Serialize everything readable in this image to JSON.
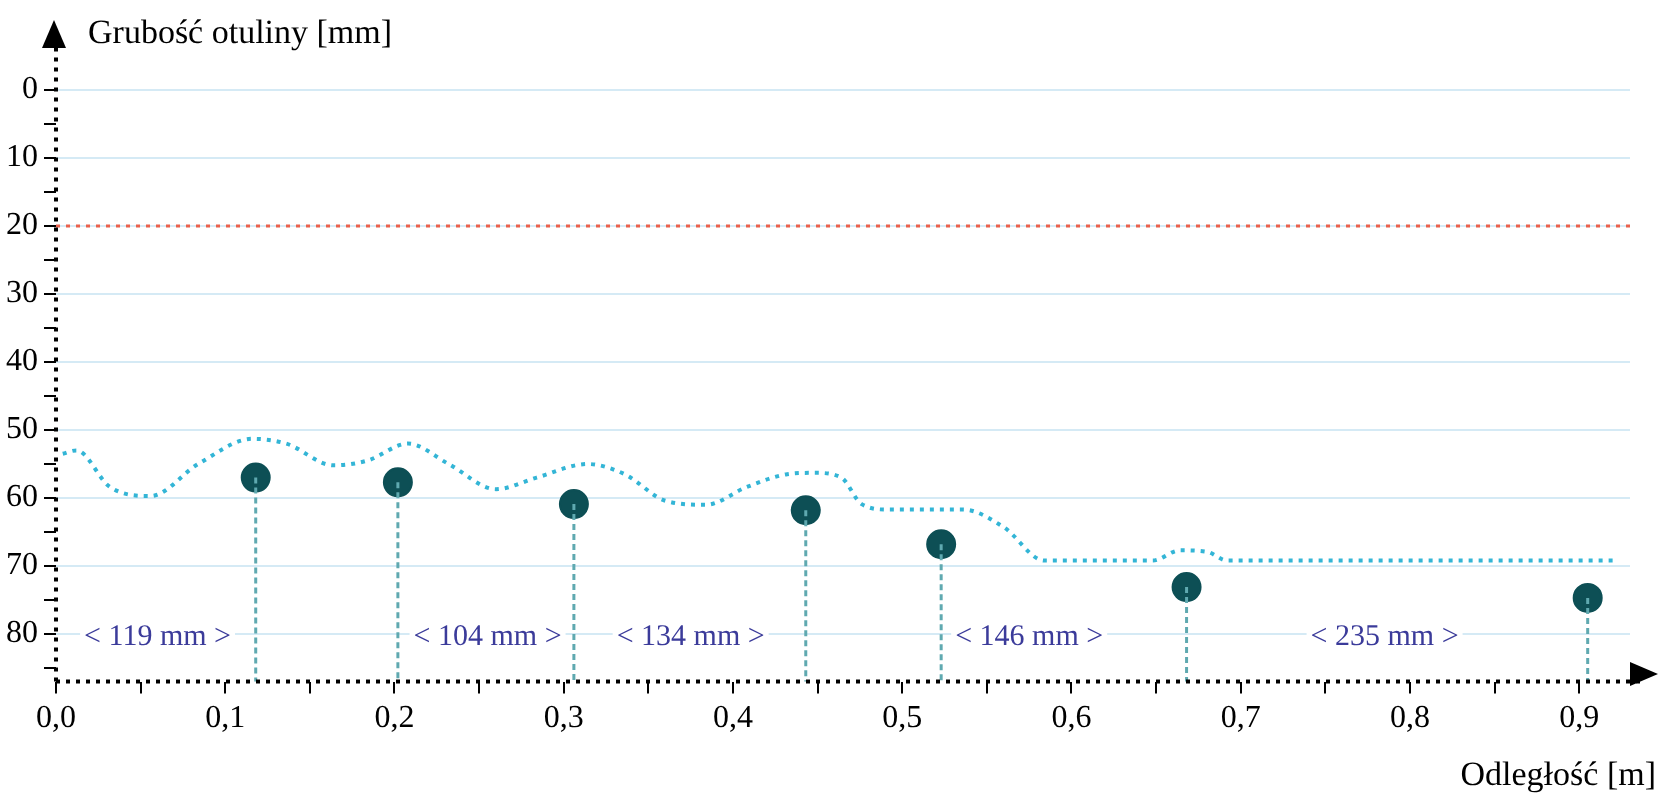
{
  "chart_data": {
    "type": "line",
    "xlabel": "Odległość [m]",
    "ylabel": "Grubość otuliny [mm]",
    "xlim": [
      0,
      0.93
    ],
    "ylim": [
      87,
      0
    ],
    "xticks": [
      {
        "value": 0,
        "label": "0,0"
      },
      {
        "value": 0.05,
        "label": null
      },
      {
        "value": 0.1,
        "label": "0,1"
      },
      {
        "value": 0.15,
        "label": null
      },
      {
        "value": 0.2,
        "label": "0,2"
      },
      {
        "value": 0.25,
        "label": null
      },
      {
        "value": 0.3,
        "label": "0,3"
      },
      {
        "value": 0.35,
        "label": null
      },
      {
        "value": 0.4,
        "label": "0,4"
      },
      {
        "value": 0.45,
        "label": null
      },
      {
        "value": 0.5,
        "label": "0,5"
      },
      {
        "value": 0.55,
        "label": null
      },
      {
        "value": 0.6,
        "label": "0,6"
      },
      {
        "value": 0.65,
        "label": null
      },
      {
        "value": 0.7,
        "label": "0,7"
      },
      {
        "value": 0.75,
        "label": null
      },
      {
        "value": 0.8,
        "label": "0,8"
      },
      {
        "value": 0.85,
        "label": null
      },
      {
        "value": 0.9,
        "label": "0,9"
      }
    ],
    "yticks": [
      0,
      {
        "value": 5,
        "label": null
      },
      10,
      {
        "value": 15,
        "label": null
      },
      20,
      {
        "value": 25,
        "label": null
      },
      30,
      {
        "value": 35,
        "label": null
      },
      40,
      {
        "value": 45,
        "label": null
      },
      50,
      {
        "value": 55,
        "label": null
      },
      60,
      {
        "value": 65,
        "label": null
      },
      70,
      {
        "value": 75,
        "label": null
      },
      80,
      {
        "value": 85,
        "label": null
      }
    ],
    "grid": "y",
    "series": [
      {
        "type": "line",
        "color": "#33b5d6",
        "line_style": "dotted",
        "marker": "none",
        "x": [
          0.004,
          0.012,
          0.032,
          0.056,
          0.084,
          0.116,
          0.136,
          0.164,
          0.184,
          0.208,
          0.232,
          0.26,
          0.284,
          0.314,
          0.336,
          0.36,
          0.384,
          0.408,
          0.432,
          0.448,
          0.464,
          0.476,
          0.492,
          0.536,
          0.56,
          0.584,
          0.648,
          0.664,
          0.68,
          0.692,
          0.92
        ],
        "values": [
          53.5,
          53,
          58.4,
          59.7,
          55,
          51.3,
          52,
          55.2,
          54.5,
          52,
          55,
          58.7,
          57,
          55,
          56.5,
          60.4,
          61,
          58.4,
          56.5,
          56.3,
          57,
          60.9,
          61.7,
          61.7,
          64.3,
          69.2,
          69.2,
          67.7,
          67.9,
          69.2,
          69.2
        ]
      },
      {
        "type": "scatter",
        "color": "#0d4f55",
        "marker": "circle",
        "x": [
          0.118,
          0.202,
          0.306,
          0.443,
          0.523,
          0.668,
          0.905
        ],
        "values": [
          57,
          57.7,
          60.9,
          61.8,
          66.8,
          73.1,
          74.7
        ],
        "errors": [
          [
            57,
            87
          ],
          [
            57.7,
            87
          ],
          [
            60.9,
            87
          ],
          [
            61.8,
            87
          ],
          [
            66.8,
            87
          ],
          [
            73.1,
            87
          ],
          [
            74.7,
            87
          ]
        ]
      }
    ],
    "ref_lines": [
      {
        "axis": "y",
        "value": 20,
        "color": "#e8604c",
        "line_style": "dotted"
      }
    ],
    "annotations": [
      "< 119 mm >",
      "< 104 mm >",
      "< 134 mm >",
      "< 146 mm >",
      "< 235 mm >"
    ]
  }
}
